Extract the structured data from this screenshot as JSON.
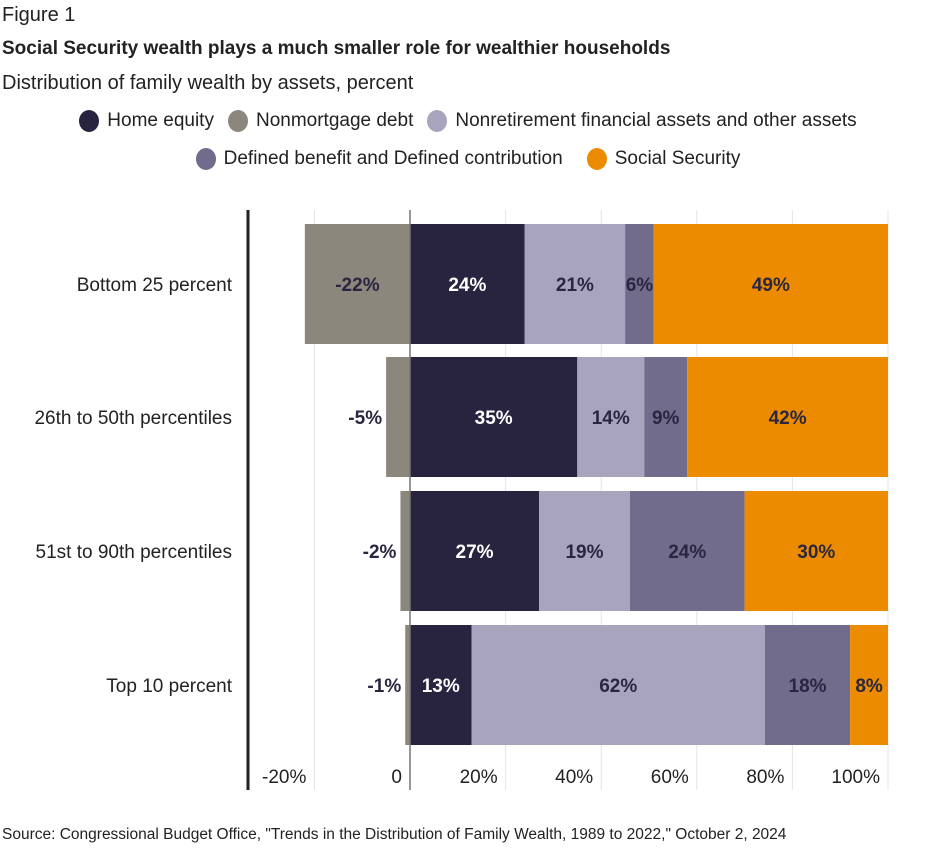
{
  "figure_label": "Figure 1",
  "chart_data": {
    "type": "bar",
    "orientation": "horizontal-stacked",
    "title": "Social Security wealth plays a much smaller role for wealthier households",
    "subtitle": "Distribution of family wealth by assets, percent",
    "categories": [
      "Bottom 25 percent",
      "26th to 50th percentiles",
      "51st to 90th percentiles",
      "Top 10 percent"
    ],
    "series": [
      {
        "name": "Nonmortgage debt",
        "color": "#8c877d",
        "values": [
          -22,
          -5,
          -2,
          -1
        ]
      },
      {
        "name": "Home equity",
        "color": "#28233f",
        "values": [
          24,
          35,
          27,
          13
        ]
      },
      {
        "name": "Nonretirement financial assets and other assets",
        "color": "#a8a4bd",
        "values": [
          21,
          14,
          19,
          62
        ]
      },
      {
        "name": "Defined benefit and Defined contribution",
        "color": "#716b8c",
        "values": [
          6,
          9,
          24,
          18
        ]
      },
      {
        "name": "Social Security",
        "color": "#ec8b00",
        "values": [
          49,
          42,
          30,
          8
        ]
      }
    ],
    "legend_order": [
      1,
      0,
      2,
      3,
      4
    ],
    "xlim": [
      -20,
      100
    ],
    "xticks": [
      -20,
      0,
      20,
      40,
      60,
      80,
      100
    ],
    "xtick_labels": [
      "-20%",
      "0",
      "20%",
      "40%",
      "60%",
      "80%",
      "100%"
    ],
    "grid": true,
    "legend_position": "top"
  },
  "source": "Source: Congressional Budget Office, \"Trends in the Distribution of Family Wealth, 1989 to 2022,\" October 2, 2024"
}
